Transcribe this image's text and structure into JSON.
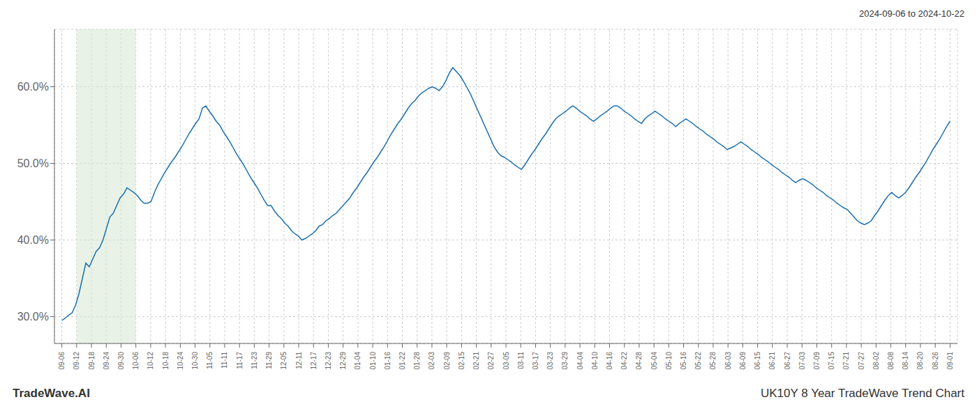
{
  "chart_data": {
    "type": "line",
    "title": "UK10Y 8 Year TradeWave Trend Chart",
    "subtitle": "2024-09-06 to 2024-10-22",
    "annotations": [
      "TradeWave.AI"
    ],
    "color": "#1a6faf",
    "grid": true,
    "highlight": {
      "x": [
        4.3167,
        21.5833
      ],
      "color": "#d5e8d4"
    },
    "xlim": [
      -2.1583,
      261.1583
    ],
    "xticks": [
      {
        "value": 0,
        "label": "09-06"
      },
      {
        "value": 4.3167,
        "label": "09-12"
      },
      {
        "value": 8.6333,
        "label": "09-18"
      },
      {
        "value": 12.95,
        "label": "09-24"
      },
      {
        "value": 17.2667,
        "label": "09-30"
      },
      {
        "value": 21.5833,
        "label": "10-06"
      },
      {
        "value": 25.9,
        "label": "10-12"
      },
      {
        "value": 30.2167,
        "label": "10-18"
      },
      {
        "value": 34.5333,
        "label": "10-24"
      },
      {
        "value": 38.85,
        "label": "10-30"
      },
      {
        "value": 43.1667,
        "label": "11-05"
      },
      {
        "value": 47.4833,
        "label": "11-11"
      },
      {
        "value": 51.8,
        "label": "11-17"
      },
      {
        "value": 56.1167,
        "label": "11-23"
      },
      {
        "value": 60.4333,
        "label": "11-29"
      },
      {
        "value": 64.75,
        "label": "12-05"
      },
      {
        "value": 69.0667,
        "label": "12-11"
      },
      {
        "value": 73.3833,
        "label": "12-17"
      },
      {
        "value": 77.7,
        "label": "12-23"
      },
      {
        "value": 82.0167,
        "label": "12-29"
      },
      {
        "value": 86.3333,
        "label": "01-04"
      },
      {
        "value": 90.65,
        "label": "01-10"
      },
      {
        "value": 94.9667,
        "label": "01-16"
      },
      {
        "value": 99.2833,
        "label": "01-22"
      },
      {
        "value": 103.6,
        "label": "01-28"
      },
      {
        "value": 107.9167,
        "label": "02-03"
      },
      {
        "value": 112.2333,
        "label": "02-09"
      },
      {
        "value": 116.55,
        "label": "02-15"
      },
      {
        "value": 120.8667,
        "label": "02-21"
      },
      {
        "value": 125.1833,
        "label": "02-27"
      },
      {
        "value": 129.5,
        "label": "03-05"
      },
      {
        "value": 133.8167,
        "label": "03-11"
      },
      {
        "value": 138.1333,
        "label": "03-17"
      },
      {
        "value": 142.45,
        "label": "03-23"
      },
      {
        "value": 146.7667,
        "label": "03-29"
      },
      {
        "value": 151.0833,
        "label": "04-04"
      },
      {
        "value": 155.4,
        "label": "04-10"
      },
      {
        "value": 159.7167,
        "label": "04-16"
      },
      {
        "value": 164.0333,
        "label": "04-22"
      },
      {
        "value": 168.35,
        "label": "04-28"
      },
      {
        "value": 172.6667,
        "label": "05-04"
      },
      {
        "value": 176.9833,
        "label": "05-10"
      },
      {
        "value": 181.3,
        "label": "05-16"
      },
      {
        "value": 185.6167,
        "label": "05-22"
      },
      {
        "value": 189.9333,
        "label": "05-28"
      },
      {
        "value": 194.25,
        "label": "06-03"
      },
      {
        "value": 198.5667,
        "label": "06-09"
      },
      {
        "value": 202.8833,
        "label": "06-15"
      },
      {
        "value": 207.2,
        "label": "06-21"
      },
      {
        "value": 211.5167,
        "label": "06-27"
      },
      {
        "value": 215.8333,
        "label": "07-03"
      },
      {
        "value": 220.15,
        "label": "07-09"
      },
      {
        "value": 224.4667,
        "label": "07-15"
      },
      {
        "value": 228.7833,
        "label": "07-21"
      },
      {
        "value": 233.1,
        "label": "07-27"
      },
      {
        "value": 237.4167,
        "label": "08-02"
      },
      {
        "value": 241.7333,
        "label": "08-08"
      },
      {
        "value": 246.05,
        "label": "08-14"
      },
      {
        "value": 250.3667,
        "label": "08-20"
      },
      {
        "value": 254.6833,
        "label": "08-26"
      },
      {
        "value": 259,
        "label": "09-01"
      }
    ],
    "ylim": [
      0.265,
      0.675
    ],
    "yticks": [
      {
        "value": 0.3,
        "label": "30.0%"
      },
      {
        "value": 0.4,
        "label": "40.0%"
      },
      {
        "value": 0.5,
        "label": "50.0%"
      },
      {
        "value": 0.6,
        "label": "60.0%"
      }
    ],
    "x": [
      0,
      1,
      2,
      3,
      4,
      5,
      6,
      7,
      8,
      9,
      10,
      11,
      12,
      13,
      14,
      15,
      16,
      17,
      18,
      19,
      20,
      21,
      22,
      23,
      24,
      25,
      26,
      27,
      28,
      29,
      30,
      31,
      32,
      33,
      34,
      35,
      36,
      37,
      38,
      39,
      40,
      41,
      42,
      43,
      44,
      45,
      46,
      47,
      48,
      49,
      50,
      51,
      52,
      53,
      54,
      55,
      56,
      57,
      58,
      59,
      60,
      61,
      62,
      63,
      64,
      65,
      66,
      67,
      68,
      69,
      70,
      71,
      72,
      73,
      74,
      75,
      76,
      77,
      78,
      79,
      80,
      81,
      82,
      83,
      84,
      85,
      86,
      87,
      88,
      89,
      90,
      91,
      92,
      93,
      94,
      95,
      96,
      97,
      98,
      99,
      100,
      101,
      102,
      103,
      104,
      105,
      106,
      107,
      108,
      109,
      110,
      111,
      112,
      113,
      114,
      115,
      116,
      117,
      118,
      119,
      120,
      121,
      122,
      123,
      124,
      125,
      126,
      127,
      128,
      129,
      130,
      131,
      132,
      133,
      134,
      135,
      136,
      137,
      138,
      139,
      140,
      141,
      142,
      143,
      144,
      145,
      146,
      147,
      148,
      149,
      150,
      151,
      152,
      153,
      154,
      155,
      156,
      157,
      158,
      159,
      160,
      161,
      162,
      163,
      164,
      165,
      166,
      167,
      168,
      169,
      170,
      171,
      172,
      173,
      174,
      175,
      176,
      177,
      178,
      179,
      180,
      181,
      182,
      183,
      184,
      185,
      186,
      187,
      188,
      189,
      190,
      191,
      192,
      193,
      194,
      195,
      196,
      197,
      198,
      199,
      200,
      201,
      202,
      203,
      204,
      205,
      206,
      207,
      208,
      209,
      210,
      211,
      212,
      213,
      214,
      215,
      216,
      217,
      218,
      219,
      220,
      221,
      222,
      223,
      224,
      225,
      226,
      227,
      228,
      229,
      230,
      231,
      232,
      233,
      234,
      235,
      236,
      237,
      238,
      239,
      240,
      241,
      242,
      243,
      244,
      245,
      246,
      247,
      248,
      249,
      250,
      251,
      252,
      253,
      254,
      255,
      256,
      257,
      258,
      259
    ],
    "values": [
      0.295,
      0.298,
      0.302,
      0.305,
      0.315,
      0.33,
      0.35,
      0.37,
      0.365,
      0.375,
      0.385,
      0.39,
      0.4,
      0.415,
      0.43,
      0.435,
      0.445,
      0.455,
      0.46,
      0.468,
      0.465,
      0.462,
      0.458,
      0.452,
      0.448,
      0.448,
      0.45,
      0.462,
      0.472,
      0.48,
      0.488,
      0.495,
      0.502,
      0.508,
      0.515,
      0.522,
      0.53,
      0.538,
      0.545,
      0.552,
      0.558,
      0.572,
      0.575,
      0.568,
      0.562,
      0.555,
      0.55,
      0.542,
      0.535,
      0.528,
      0.52,
      0.512,
      0.505,
      0.498,
      0.49,
      0.482,
      0.475,
      0.468,
      0.46,
      0.452,
      0.445,
      0.445,
      0.438,
      0.432,
      0.428,
      0.422,
      0.418,
      0.412,
      0.408,
      0.405,
      0.4,
      0.402,
      0.405,
      0.408,
      0.412,
      0.418,
      0.42,
      0.425,
      0.428,
      0.432,
      0.435,
      0.44,
      0.445,
      0.45,
      0.455,
      0.462,
      0.468,
      0.475,
      0.482,
      0.488,
      0.495,
      0.502,
      0.508,
      0.515,
      0.522,
      0.53,
      0.538,
      0.545,
      0.552,
      0.558,
      0.565,
      0.572,
      0.578,
      0.582,
      0.588,
      0.592,
      0.595,
      0.598,
      0.6,
      0.598,
      0.595,
      0.6,
      0.608,
      0.618,
      0.625,
      0.62,
      0.615,
      0.608,
      0.6,
      0.592,
      0.582,
      0.572,
      0.562,
      0.552,
      0.542,
      0.532,
      0.522,
      0.515,
      0.51,
      0.508,
      0.505,
      0.502,
      0.498,
      0.495,
      0.492,
      0.498,
      0.505,
      0.512,
      0.518,
      0.525,
      0.532,
      0.538,
      0.545,
      0.552,
      0.558,
      0.562,
      0.565,
      0.568,
      0.572,
      0.575,
      0.572,
      0.568,
      0.565,
      0.562,
      0.558,
      0.555,
      0.558,
      0.562,
      0.565,
      0.568,
      0.572,
      0.575,
      0.575,
      0.572,
      0.568,
      0.565,
      0.562,
      0.558,
      0.555,
      0.552,
      0.558,
      0.562,
      0.565,
      0.568,
      0.565,
      0.562,
      0.558,
      0.555,
      0.552,
      0.548,
      0.552,
      0.555,
      0.558,
      0.555,
      0.552,
      0.548,
      0.545,
      0.542,
      0.538,
      0.535,
      0.532,
      0.528,
      0.525,
      0.522,
      0.518,
      0.52,
      0.522,
      0.525,
      0.528,
      0.525,
      0.522,
      0.518,
      0.515,
      0.512,
      0.508,
      0.505,
      0.502,
      0.498,
      0.495,
      0.492,
      0.488,
      0.485,
      0.482,
      0.478,
      0.475,
      0.478,
      0.48,
      0.478,
      0.475,
      0.472,
      0.468,
      0.465,
      0.462,
      0.458,
      0.455,
      0.452,
      0.448,
      0.445,
      0.442,
      0.44,
      0.435,
      0.43,
      0.425,
      0.422,
      0.42,
      0.422,
      0.425,
      0.432,
      0.438,
      0.445,
      0.452,
      0.458,
      0.462,
      0.458,
      0.455,
      0.458,
      0.462,
      0.468,
      0.475,
      0.482,
      0.488,
      0.495,
      0.502,
      0.51,
      0.518,
      0.525,
      0.532,
      0.54,
      0.548,
      0.555
    ]
  }
}
